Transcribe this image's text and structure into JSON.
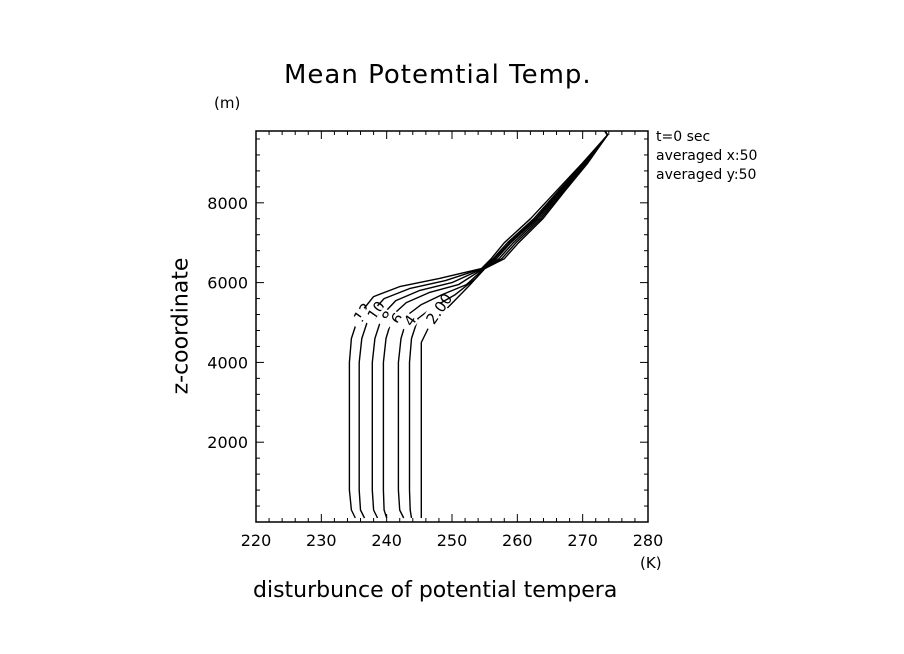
{
  "chart_data": {
    "type": "line",
    "title": "Mean Potemtial Temp.",
    "xlabel": "disturbunce of potential tempera",
    "ylabel": "z-coordinate",
    "x_unit": "(K)",
    "y_unit": "(m)",
    "xlim": [
      220,
      280
    ],
    "ylim": [
      0,
      9800
    ],
    "x_ticks": [
      220,
      230,
      240,
      250,
      260,
      270,
      280
    ],
    "y_ticks": [
      2000,
      4000,
      6000,
      8000
    ],
    "grid": false,
    "annotations": [
      "t=0 sec",
      "averaged   x:50",
      "averaged   y:50"
    ],
    "contour_labels": [
      "12",
      "10",
      "8",
      "6",
      "4",
      "2.00"
    ],
    "series": [
      {
        "label": "12",
        "points": [
          [
            235.2,
            100
          ],
          [
            234.6,
            300
          ],
          [
            234.3,
            800
          ],
          [
            234.3,
            4000
          ],
          [
            234.6,
            4600
          ],
          [
            235.8,
            5200
          ],
          [
            238.0,
            5650
          ],
          [
            242.0,
            5900
          ],
          [
            248.0,
            6100
          ],
          [
            254.5,
            6350
          ],
          [
            256.0,
            6600
          ],
          [
            258.0,
            7000
          ],
          [
            262.0,
            7600
          ],
          [
            266.0,
            8300
          ],
          [
            270.0,
            9000
          ],
          [
            273.8,
            9700
          ],
          [
            273.4,
            9800
          ]
        ]
      },
      {
        "label": "10",
        "points": [
          [
            236.6,
            100
          ],
          [
            236.0,
            300
          ],
          [
            235.8,
            800
          ],
          [
            235.8,
            4000
          ],
          [
            236.2,
            4600
          ],
          [
            237.4,
            5200
          ],
          [
            239.6,
            5600
          ],
          [
            243.5,
            5850
          ],
          [
            249.0,
            6050
          ],
          [
            254.6,
            6350
          ],
          [
            256.3,
            6600
          ],
          [
            258.5,
            7000
          ],
          [
            262.5,
            7600
          ],
          [
            266.3,
            8300
          ],
          [
            270.2,
            9000
          ],
          [
            273.8,
            9700
          ],
          [
            273.4,
            9800
          ]
        ]
      },
      {
        "label": "8",
        "points": [
          [
            238.6,
            100
          ],
          [
            238.0,
            300
          ],
          [
            237.8,
            800
          ],
          [
            237.8,
            4000
          ],
          [
            238.2,
            4600
          ],
          [
            239.4,
            5200
          ],
          [
            241.4,
            5550
          ],
          [
            245.0,
            5800
          ],
          [
            250.0,
            6000
          ],
          [
            254.7,
            6350
          ],
          [
            256.5,
            6600
          ],
          [
            258.8,
            7000
          ],
          [
            262.8,
            7600
          ],
          [
            266.5,
            8300
          ],
          [
            270.4,
            9000
          ],
          [
            273.8,
            9700
          ],
          [
            273.4,
            9800
          ]
        ]
      },
      {
        "label": "6",
        "points": [
          [
            240.0,
            100
          ],
          [
            239.6,
            300
          ],
          [
            239.5,
            800
          ],
          [
            239.5,
            4000
          ],
          [
            239.9,
            4600
          ],
          [
            241.0,
            5200
          ],
          [
            243.0,
            5500
          ],
          [
            246.5,
            5750
          ],
          [
            251.0,
            5950
          ],
          [
            254.8,
            6350
          ],
          [
            256.8,
            6600
          ],
          [
            259.0,
            7000
          ],
          [
            263.0,
            7600
          ],
          [
            266.7,
            8300
          ],
          [
            270.5,
            9000
          ],
          [
            273.8,
            9700
          ],
          [
            273.4,
            9800
          ]
        ]
      },
      {
        "label": "4",
        "points": [
          [
            242.6,
            100
          ],
          [
            242.0,
            300
          ],
          [
            241.8,
            800
          ],
          [
            241.8,
            4000
          ],
          [
            242.2,
            4600
          ],
          [
            243.3,
            5200
          ],
          [
            245.3,
            5450
          ],
          [
            248.5,
            5700
          ],
          [
            252.2,
            5950
          ],
          [
            254.9,
            6350
          ],
          [
            257.2,
            6600
          ],
          [
            259.4,
            7000
          ],
          [
            263.3,
            7600
          ],
          [
            266.9,
            8300
          ],
          [
            270.6,
            9000
          ],
          [
            273.8,
            9700
          ],
          [
            273.4,
            9800
          ]
        ]
      },
      {
        "label": "2.00",
        "points": [
          [
            243.8,
            100
          ],
          [
            243.6,
            300
          ],
          [
            243.5,
            800
          ],
          [
            243.5,
            4000
          ],
          [
            243.8,
            4600
          ],
          [
            244.8,
            5100
          ],
          [
            246.8,
            5350
          ],
          [
            250.5,
            5700
          ],
          [
            253.6,
            6100
          ],
          [
            255.0,
            6350
          ],
          [
            257.6,
            6600
          ],
          [
            259.8,
            7000
          ],
          [
            263.6,
            7600
          ],
          [
            267.1,
            8300
          ],
          [
            270.7,
            9000
          ],
          [
            273.8,
            9700
          ],
          [
            273.4,
            9800
          ]
        ]
      },
      {
        "label": "",
        "points": [
          [
            245.3,
            100
          ],
          [
            245.3,
            4500
          ],
          [
            246.5,
            4900
          ],
          [
            249.5,
            5400
          ],
          [
            252.5,
            5900
          ],
          [
            255.0,
            6350
          ],
          [
            258.0,
            6600
          ],
          [
            260.2,
            7000
          ],
          [
            263.9,
            7600
          ],
          [
            267.3,
            8300
          ],
          [
            270.8,
            9000
          ],
          [
            273.8,
            9700
          ],
          [
            273.4,
            9800
          ]
        ]
      }
    ]
  }
}
